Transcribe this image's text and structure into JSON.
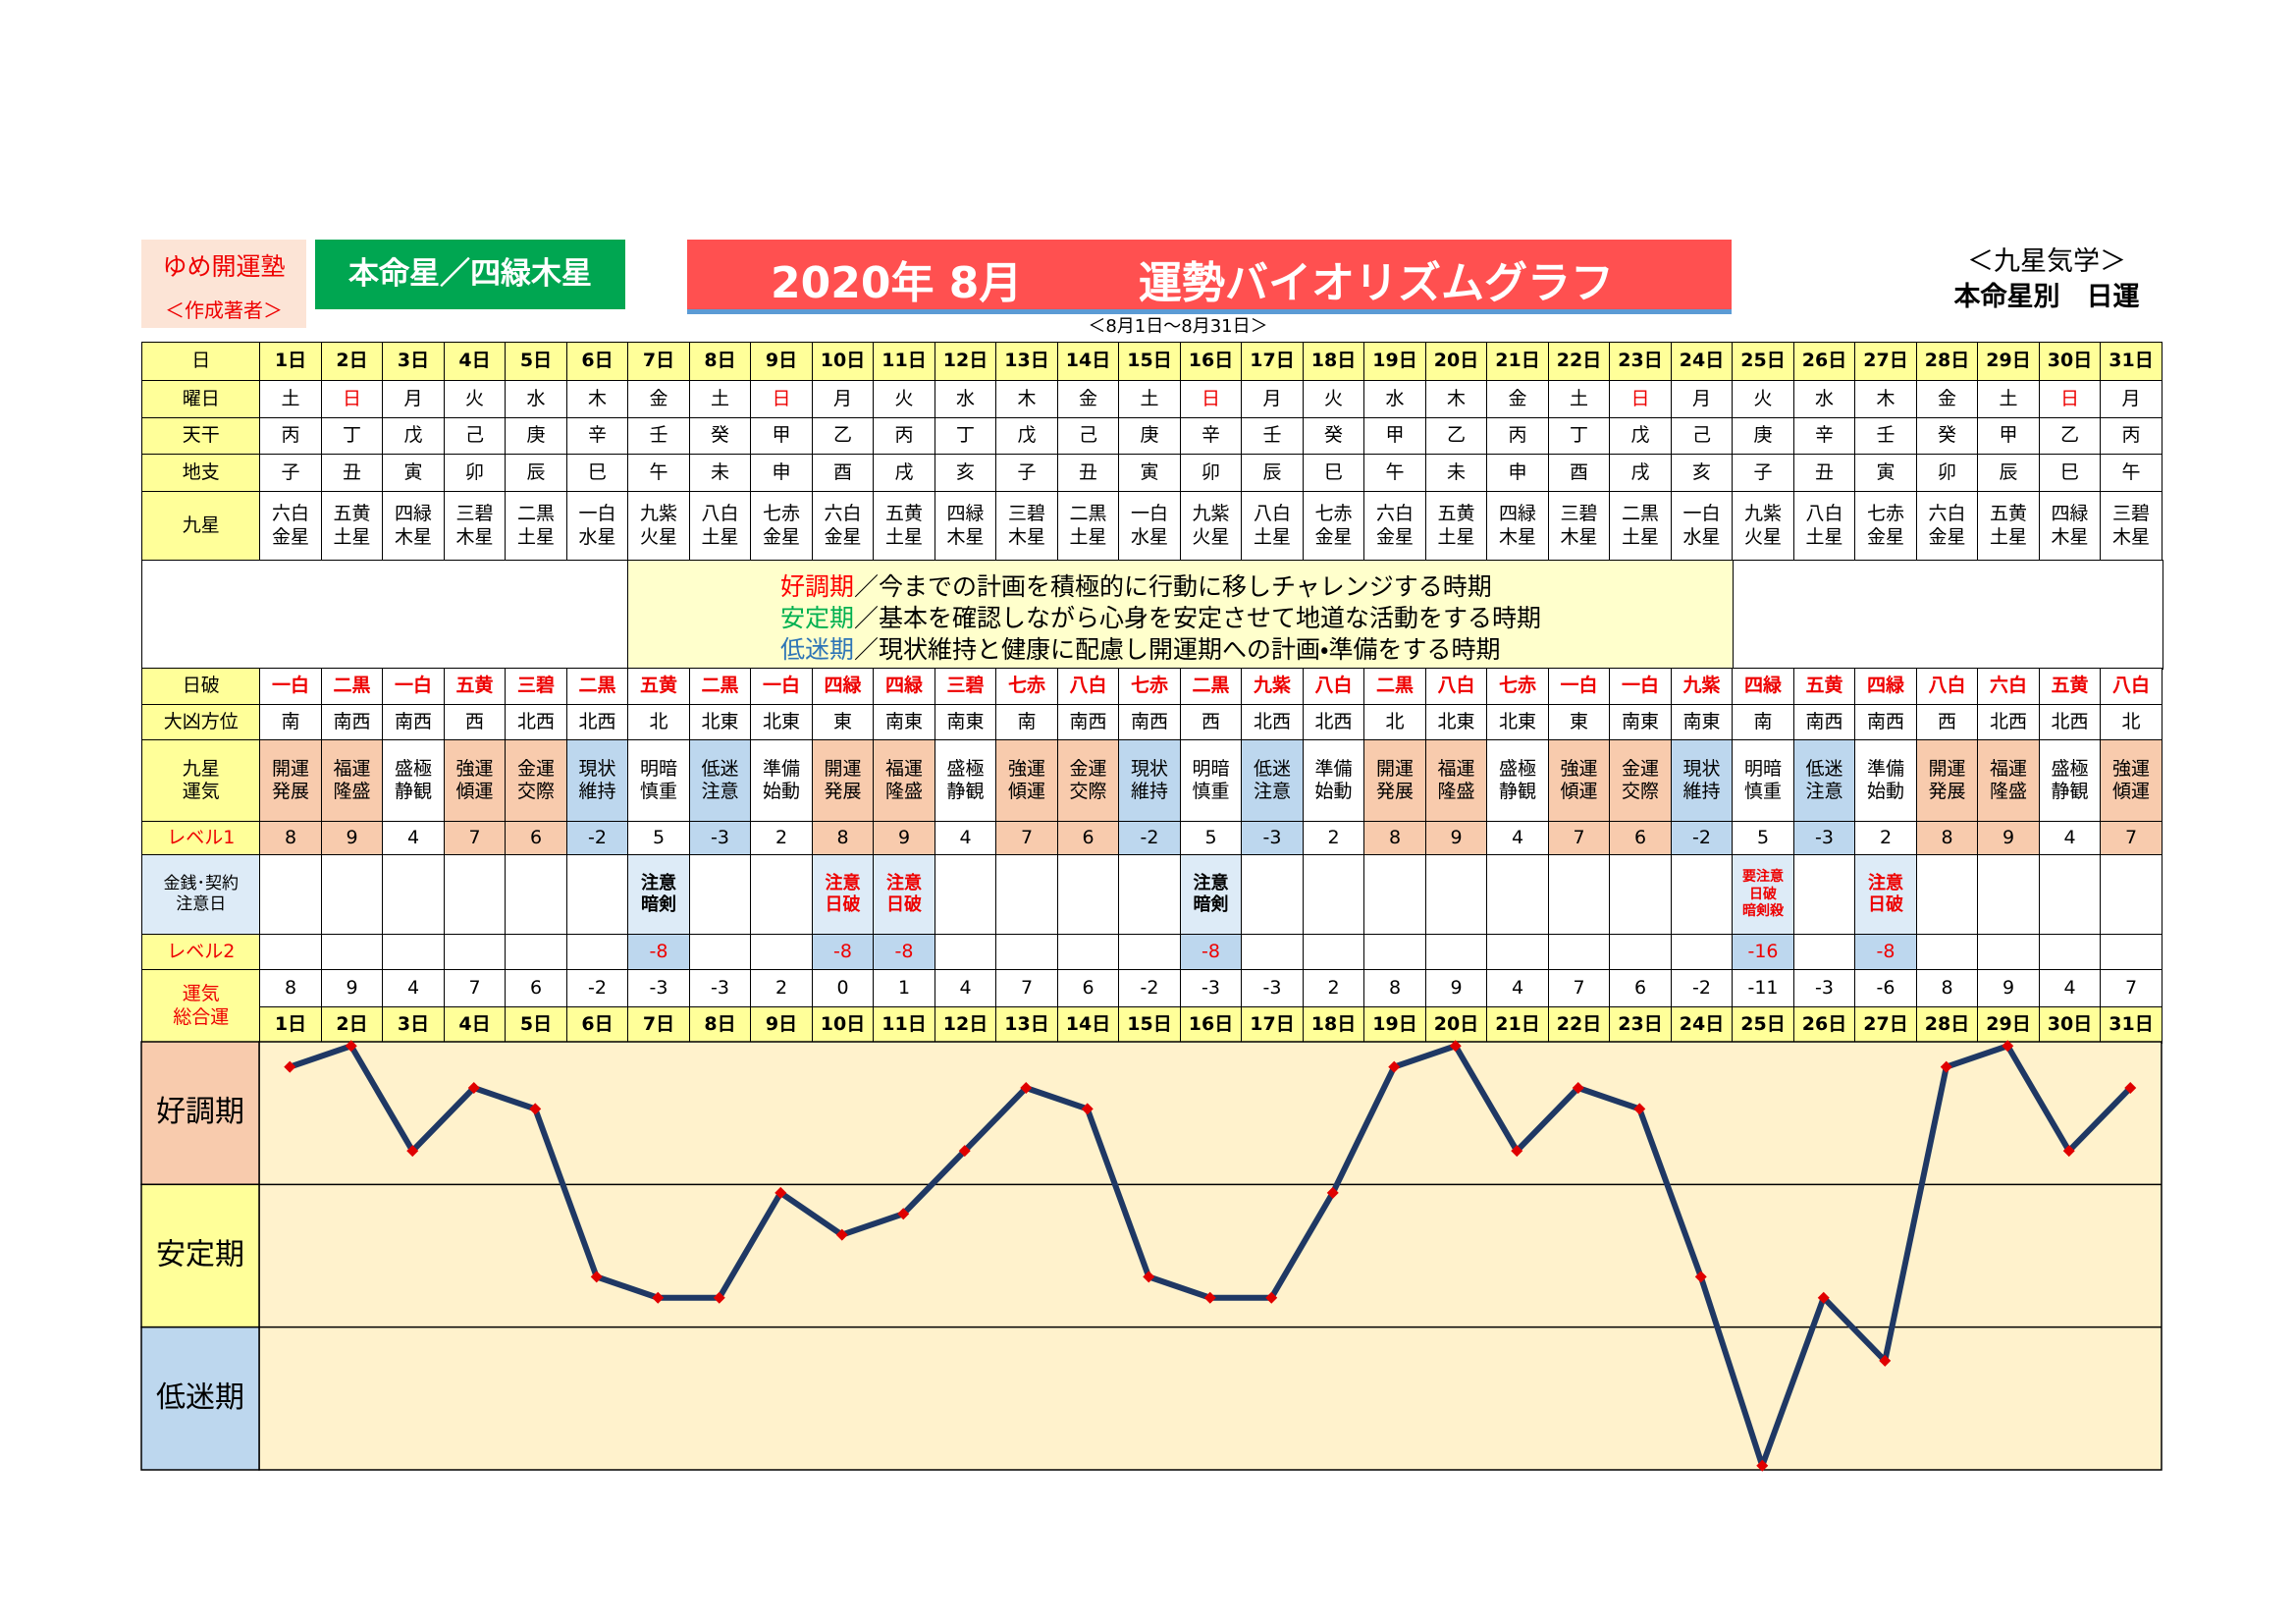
{
  "header": {
    "org": "ゆめ開運塾",
    "author": "＜作成著者＞",
    "honmei": "本命星／四緑木星",
    "title_date": "2020年 8月",
    "title": "運勢バイオリズムグラフ",
    "tag": "＜九星気学＞",
    "kind": "本命星別　日運",
    "period": "＜8月1日～8月31日＞"
  },
  "legend": [
    {
      "term": "好調期",
      "color": "#ff0000",
      "text": "／今までの計画を積極的に行動に移しチャレンジする時期"
    },
    {
      "term": "安定期",
      "color": "#00b050",
      "text": "／基本を確認しながら心身を安定させて地道な活動をする時期"
    },
    {
      "term": "低迷期",
      "color": "#2e75b6",
      "text": "／現状維持と健康に配慮し開運期への計画・準備をする時期"
    }
  ],
  "table": {
    "day_label": "日",
    "total_label": "運気\n総合運",
    "rows": [
      {
        "label": "曜日",
        "cells": [
          "土",
          "日",
          "月",
          "火",
          "水",
          "木",
          "金",
          "土",
          "日",
          "月",
          "火",
          "水",
          "木",
          "金",
          "土",
          "日",
          "月",
          "火",
          "水",
          "木",
          "金",
          "土",
          "日",
          "月",
          "火",
          "水",
          "木",
          "金",
          "土",
          "日",
          "月"
        ],
        "text_colors": [
          "#000",
          "#e00",
          "#000",
          "#000",
          "#000",
          "#000",
          "#000",
          "#000",
          "#e00",
          "#000",
          "#000",
          "#000",
          "#000",
          "#000",
          "#000",
          "#e00",
          "#000",
          "#000",
          "#000",
          "#000",
          "#000",
          "#000",
          "#e00",
          "#000",
          "#000",
          "#000",
          "#000",
          "#000",
          "#000",
          "#e00",
          "#000"
        ]
      },
      {
        "label": "天干",
        "cells": [
          "丙",
          "丁",
          "戊",
          "己",
          "庚",
          "辛",
          "壬",
          "癸",
          "甲",
          "乙",
          "丙",
          "丁",
          "戊",
          "己",
          "庚",
          "辛",
          "壬",
          "癸",
          "甲",
          "乙",
          "丙",
          "丁",
          "戊",
          "己",
          "庚",
          "辛",
          "壬",
          "癸",
          "甲",
          "乙",
          "丙"
        ]
      },
      {
        "label": "地支",
        "cells": [
          "子",
          "丑",
          "寅",
          "卯",
          "辰",
          "巳",
          "午",
          "未",
          "申",
          "酉",
          "戌",
          "亥",
          "子",
          "丑",
          "寅",
          "卯",
          "辰",
          "巳",
          "午",
          "未",
          "申",
          "酉",
          "戌",
          "亥",
          "子",
          "丑",
          "寅",
          "卯",
          "辰",
          "巳",
          "午"
        ]
      },
      {
        "label": "九星",
        "cells": [
          "六白\n金星",
          "五黄\n土星",
          "四緑\n木星",
          "三碧\n木星",
          "二黒\n土星",
          "一白\n水星",
          "九紫\n火星",
          "八白\n土星",
          "七赤\n金星",
          "六白\n金星",
          "五黄\n土星",
          "四緑\n木星",
          "三碧\n木星",
          "二黒\n土星",
          "一白\n水星",
          "九紫\n火星",
          "八白\n土星",
          "七赤\n金星",
          "六白\n金星",
          "五黄\n土星",
          "四緑\n木星",
          "三碧\n木星",
          "二黒\n土星",
          "一白\n水星",
          "九紫\n火星",
          "八白\n土星",
          "七赤\n金星",
          "六白\n金星",
          "五黄\n土星",
          "四緑\n木星",
          "三碧\n木星"
        ]
      },
      {
        "label": "日破",
        "color": "#e00",
        "cells": [
          "一白",
          "二黒",
          "一白",
          "五黄",
          "三碧",
          "二黒",
          "五黄",
          "二黒",
          "一白",
          "四緑",
          "四緑",
          "三碧",
          "七赤",
          "八白",
          "七赤",
          "二黒",
          "九紫",
          "八白",
          "二黒",
          "八白",
          "七赤",
          "一白",
          "一白",
          "九紫",
          "四緑",
          "五黄",
          "四緑",
          "八白",
          "六白",
          "五黄",
          "八白"
        ]
      },
      {
        "label": "大凶方位",
        "cells": [
          "南",
          "南西",
          "南西",
          "西",
          "北西",
          "北西",
          "北",
          "北東",
          "北東",
          "東",
          "南東",
          "南東",
          "南",
          "南西",
          "南西",
          "西",
          "北西",
          "北西",
          "北",
          "北東",
          "北東",
          "東",
          "南東",
          "南東",
          "南",
          "南西",
          "南西",
          "西",
          "北西",
          "北西",
          "北"
        ]
      },
      {
        "label": "九星\n運気",
        "cells": [
          "開運\n発展",
          "福運\n隆盛",
          "盛極\n静観",
          "強運\n傾運",
          "金運\n交際",
          "現状\n維持",
          "明暗\n慎重",
          "低迷\n注意",
          "準備\n始動",
          "開運\n発展",
          "福運\n隆盛",
          "盛極\n静観",
          "強運\n傾運",
          "金運\n交際",
          "現状\n維持",
          "明暗\n慎重",
          "低迷\n注意",
          "準備\n始動",
          "開運\n発展",
          "福運\n隆盛",
          "盛極\n静観",
          "強運\n傾運",
          "金運\n交際",
          "現状\n維持",
          "明暗\n慎重",
          "低迷\n注意",
          "準備\n始動",
          "開運\n発展",
          "福運\n隆盛",
          "盛極\n静観",
          "強運\n傾運"
        ],
        "fills": [
          "#f8cbad",
          "#f8cbad",
          "#ffffff",
          "#f8cbad",
          "#f8cbad",
          "#bdd7ee",
          "#ffffff",
          "#bdd7ee",
          "#ffffff",
          "#f8cbad",
          "#f8cbad",
          "#ffffff",
          "#f8cbad",
          "#f8cbad",
          "#bdd7ee",
          "#ffffff",
          "#bdd7ee",
          "#ffffff",
          "#f8cbad",
          "#f8cbad",
          "#ffffff",
          "#f8cbad",
          "#f8cbad",
          "#bdd7ee",
          "#ffffff",
          "#bdd7ee",
          "#ffffff",
          "#f8cbad",
          "#f8cbad",
          "#ffffff",
          "#f8cbad"
        ]
      },
      {
        "label": "レベル1",
        "label_color": "#e00",
        "cells": [
          8,
          9,
          4,
          7,
          6,
          -2,
          5,
          -3,
          2,
          8,
          9,
          4,
          7,
          6,
          -2,
          5,
          -3,
          2,
          8,
          9,
          4,
          7,
          6,
          -2,
          5,
          -3,
          2,
          8,
          9,
          4,
          7
        ],
        "fills": [
          "#f8cbad",
          "#f8cbad",
          "#ffffff",
          "#f8cbad",
          "#f8cbad",
          "#bdd7ee",
          "#ffffff",
          "#bdd7ee",
          "#ffffff",
          "#f8cbad",
          "#f8cbad",
          "#ffffff",
          "#f8cbad",
          "#f8cbad",
          "#bdd7ee",
          "#ffffff",
          "#bdd7ee",
          "#ffffff",
          "#f8cbad",
          "#f8cbad",
          "#ffffff",
          "#f8cbad",
          "#f8cbad",
          "#bdd7ee",
          "#ffffff",
          "#bdd7ee",
          "#ffffff",
          "#f8cbad",
          "#f8cbad",
          "#ffffff",
          "#f8cbad"
        ]
      },
      {
        "label": "金銭･契約\n注意日",
        "label_fill": "#ddebf7",
        "cells": [
          null,
          null,
          null,
          null,
          null,
          null,
          "注意\n暗剣",
          null,
          null,
          "注意\n日破",
          "注意\n日破",
          null,
          null,
          null,
          null,
          "注意\n暗剣",
          null,
          null,
          null,
          null,
          null,
          null,
          null,
          null,
          "要注意\n日破\n暗剣殺",
          null,
          "注意\n日破",
          null,
          null,
          null,
          null
        ],
        "fills": [
          "#ffffff",
          "#ffffff",
          "#ffffff",
          "#ffffff",
          "#ffffff",
          "#ffffff",
          "#ddebf7",
          "#ffffff",
          "#ffffff",
          "#ddebf7",
          "#ddebf7",
          "#ffffff",
          "#ffffff",
          "#ffffff",
          "#ffffff",
          "#ddebf7",
          "#ffffff",
          "#ffffff",
          "#ffffff",
          "#ffffff",
          "#ffffff",
          "#ffffff",
          "#ffffff",
          "#ffffff",
          "#ddebf7",
          "#ffffff",
          "#ddebf7",
          "#ffffff",
          "#ffffff",
          "#ffffff",
          "#ffffff"
        ],
        "text_colors": [
          "#000",
          "#000",
          "#000",
          "#000",
          "#000",
          "#000",
          "#000",
          "#000",
          "#000",
          "#e00",
          "#e00",
          "#000",
          "#000",
          "#000",
          "#000",
          "#000",
          "#000",
          "#000",
          "#000",
          "#000",
          "#000",
          "#000",
          "#000",
          "#000",
          "#e00",
          "#000",
          "#e00",
          "#000",
          "#000",
          "#000",
          "#000"
        ]
      },
      {
        "label": "レベル2",
        "label_color": "#e00",
        "color": "#e00",
        "cells": [
          null,
          null,
          null,
          null,
          null,
          null,
          -8,
          null,
          null,
          -8,
          -8,
          null,
          null,
          null,
          null,
          -8,
          null,
          null,
          null,
          null,
          null,
          null,
          null,
          null,
          -16,
          null,
          -8,
          null,
          null,
          null,
          null
        ],
        "fills": [
          "#ffffff",
          "#ffffff",
          "#ffffff",
          "#ffffff",
          "#ffffff",
          "#ffffff",
          "#bdd7ee",
          "#ffffff",
          "#ffffff",
          "#bdd7ee",
          "#bdd7ee",
          "#ffffff",
          "#ffffff",
          "#ffffff",
          "#ffffff",
          "#bdd7ee",
          "#ffffff",
          "#ffffff",
          "#ffffff",
          "#ffffff",
          "#ffffff",
          "#ffffff",
          "#ffffff",
          "#ffffff",
          "#bdd7ee",
          "#ffffff",
          "#bdd7ee",
          "#ffffff",
          "#ffffff",
          "#ffffff",
          "#ffffff"
        ]
      }
    ]
  },
  "chart_data": {
    "type": "line",
    "categories": [
      "1日",
      "2日",
      "3日",
      "4日",
      "5日",
      "6日",
      "7日",
      "8日",
      "9日",
      "10日",
      "11日",
      "12日",
      "13日",
      "14日",
      "15日",
      "16日",
      "17日",
      "18日",
      "19日",
      "20日",
      "21日",
      "22日",
      "23日",
      "24日",
      "25日",
      "26日",
      "27日",
      "28日",
      "29日",
      "30日",
      "31日"
    ],
    "values": [
      8,
      9,
      4,
      7,
      6,
      -2,
      -3,
      -3,
      2,
      0,
      1,
      4,
      7,
      6,
      -2,
      -3,
      -3,
      2,
      8,
      9,
      4,
      7,
      6,
      -2,
      -11,
      -3,
      -6,
      8,
      9,
      4,
      7
    ],
    "ylim": [
      -11.2,
      9.2
    ],
    "color": "#1f3864",
    "marker_color": "#e00000",
    "background": "#fff2cc",
    "bands": [
      "好調期",
      "安定期",
      "低迷期"
    ],
    "band_colors": [
      "#f8cbad",
      "#ffff99",
      "#bdd7ee"
    ]
  }
}
